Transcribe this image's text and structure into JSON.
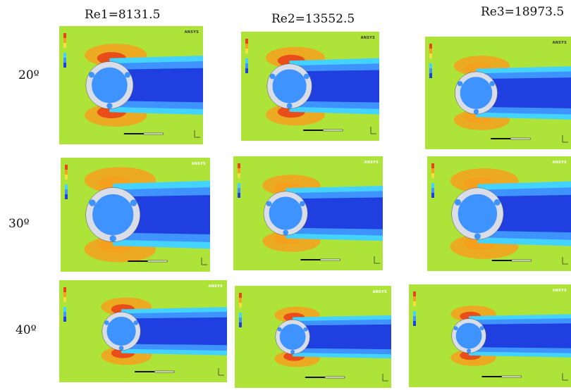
{
  "columns": [
    {
      "label": "Re1=8131.5"
    },
    {
      "label": "Re2=13552.5"
    },
    {
      "label": "Re3=18973.5"
    }
  ],
  "rows": [
    {
      "label": "20º"
    },
    {
      "label": "30º"
    },
    {
      "label": "40º"
    }
  ],
  "logo_text": "ANSYS",
  "colors": {
    "far_field": "#aee33a",
    "wake_deep": "#1f3fe0",
    "wake_mid": "#3f93ff",
    "wake_light": "#44d3ff",
    "high_velocity": "#f6a01e",
    "peak_velocity": "#e8431a",
    "blade": "#d9dde8"
  }
}
